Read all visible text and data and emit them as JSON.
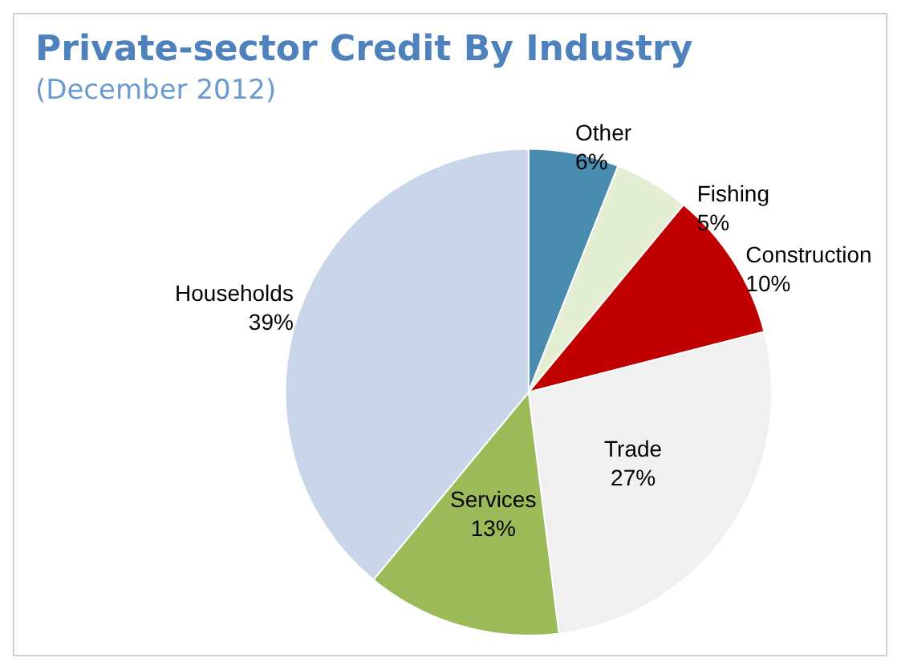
{
  "chart_data": {
    "type": "pie",
    "title": "Private-sector Credit By Industry",
    "subtitle": "(December 2012)",
    "categories": [
      "Other",
      "Fishing",
      "Construction",
      "Trade",
      "Services",
      "Households"
    ],
    "values": [
      6,
      5,
      10,
      27,
      13,
      39
    ],
    "colors": [
      "#4a8bb0",
      "#e4eed2",
      "#c00000",
      "#f0f0f0",
      "#9bbb59",
      "#c9d6ea"
    ],
    "value_labels": [
      "6%",
      "5%",
      "10%",
      "27%",
      "13%",
      "39%"
    ],
    "legend": false
  }
}
